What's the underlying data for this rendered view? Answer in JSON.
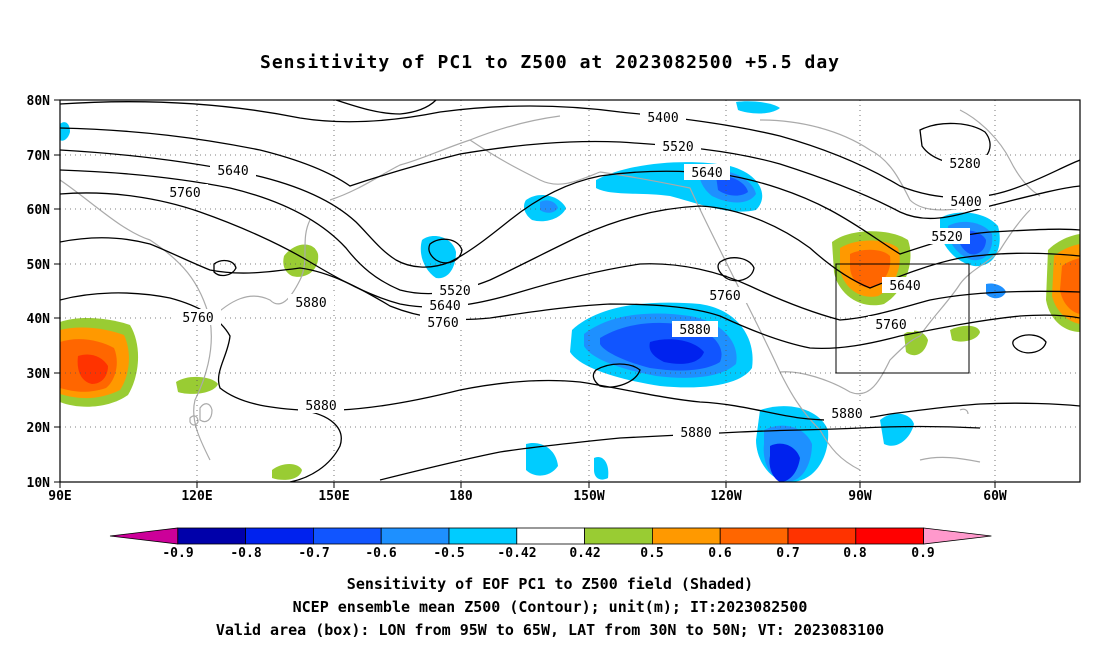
{
  "title": "Sensitivity of PC1 to Z500 at 2023082500 +5.5 day",
  "lat_labels": [
    "80N",
    "70N",
    "60N",
    "50N",
    "40N",
    "30N",
    "20N",
    "10N"
  ],
  "lon_labels": [
    "90E",
    "120E",
    "150E",
    "180",
    "150W",
    "120W",
    "90W",
    "60W"
  ],
  "contour_labels": [
    "5400",
    "5520",
    "5640",
    "5280",
    "5400",
    "5520",
    "5640",
    "5760",
    "5640",
    "5760",
    "5760",
    "5880",
    "5520",
    "5640",
    "5760",
    "5760",
    "5880",
    "5880",
    "5880",
    "5880"
  ],
  "colorbar": {
    "labels": [
      "-0.9",
      "-0.8",
      "-0.7",
      "-0.6",
      "-0.5",
      "-0.42",
      "0.42",
      "0.5",
      "0.6",
      "0.7",
      "0.8",
      "0.9"
    ],
    "colors": [
      "#cc0099",
      "#0000aa",
      "#0022ee",
      "#1155ff",
      "#1e90ff",
      "#00ccff",
      "#ffffff",
      "#99cc33",
      "#ff9900",
      "#ff6600",
      "#ff3300",
      "#ff0000",
      "#ff99cc"
    ]
  },
  "box_label_area": "Valid area (box): LON from 95W to 65W, LAT from 30N to 50N",
  "caption": [
    "Sensitivity of EOF PC1 to Z500 field (Shaded)",
    "NCEP ensemble mean Z500 (Contour); unit(m); IT:2023082500",
    "Valid area (box): LON from 95W to 65W, LAT from 30N to 50N; VT: 2023083100"
  ],
  "valid_box": {
    "lon_west": -95,
    "lon_east": -65,
    "lat_south": 30,
    "lat_north": 50
  }
}
